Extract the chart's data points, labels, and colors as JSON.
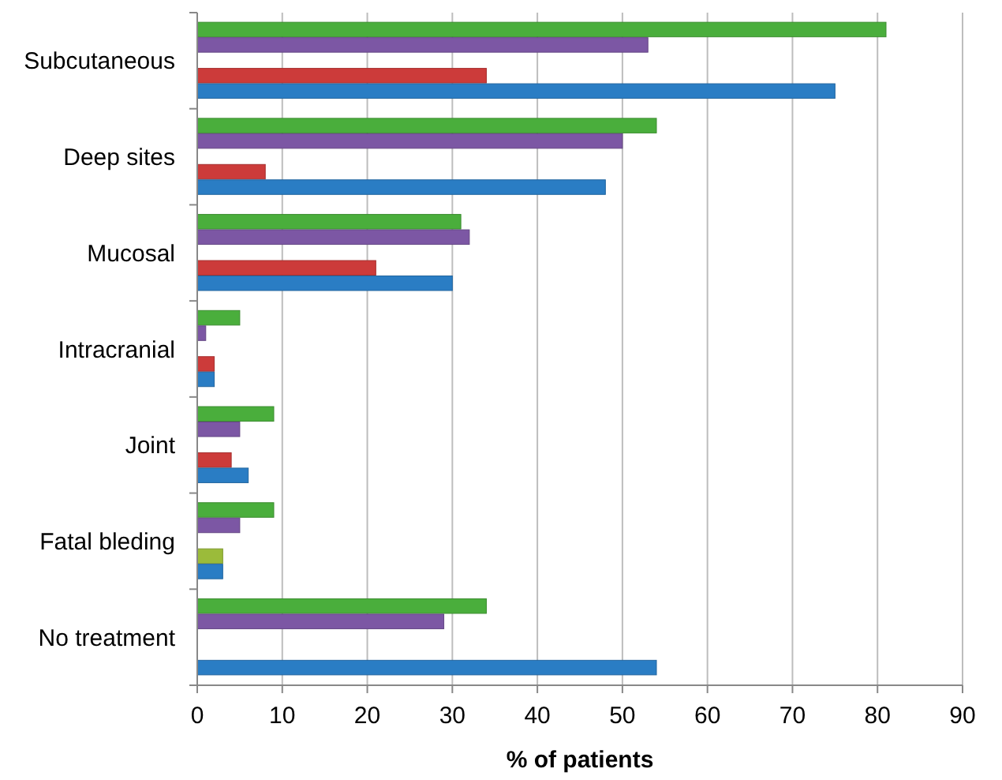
{
  "chart_data": {
    "type": "bar",
    "orientation": "horizontal",
    "xlabel": "%  of patients",
    "categories": [
      "Subcutaneous",
      "Deep sites",
      "Mucosal",
      "Intracranial",
      "Joint",
      "Fatal bleding",
      "No treatment"
    ],
    "series": [
      {
        "color": "#4aae3c",
        "values": [
          81,
          54,
          31,
          5,
          9,
          9,
          34
        ]
      },
      {
        "color": "#7c57a4",
        "values": [
          53,
          50,
          32,
          1,
          5,
          5,
          29
        ]
      },
      {
        "color": "#cc3b3a",
        "colors": [
          null,
          null,
          null,
          null,
          null,
          "#9bbb3a",
          null
        ],
        "values": [
          34,
          8,
          21,
          2,
          4,
          3,
          null
        ]
      },
      {
        "color": "#2a7dc4",
        "values": [
          75,
          48,
          30,
          2,
          6,
          3,
          54
        ]
      }
    ],
    "xlim": [
      0,
      90
    ],
    "xticks": [
      0,
      10,
      20,
      30,
      40,
      50,
      60,
      70,
      80,
      90
    ],
    "grid": "x"
  }
}
